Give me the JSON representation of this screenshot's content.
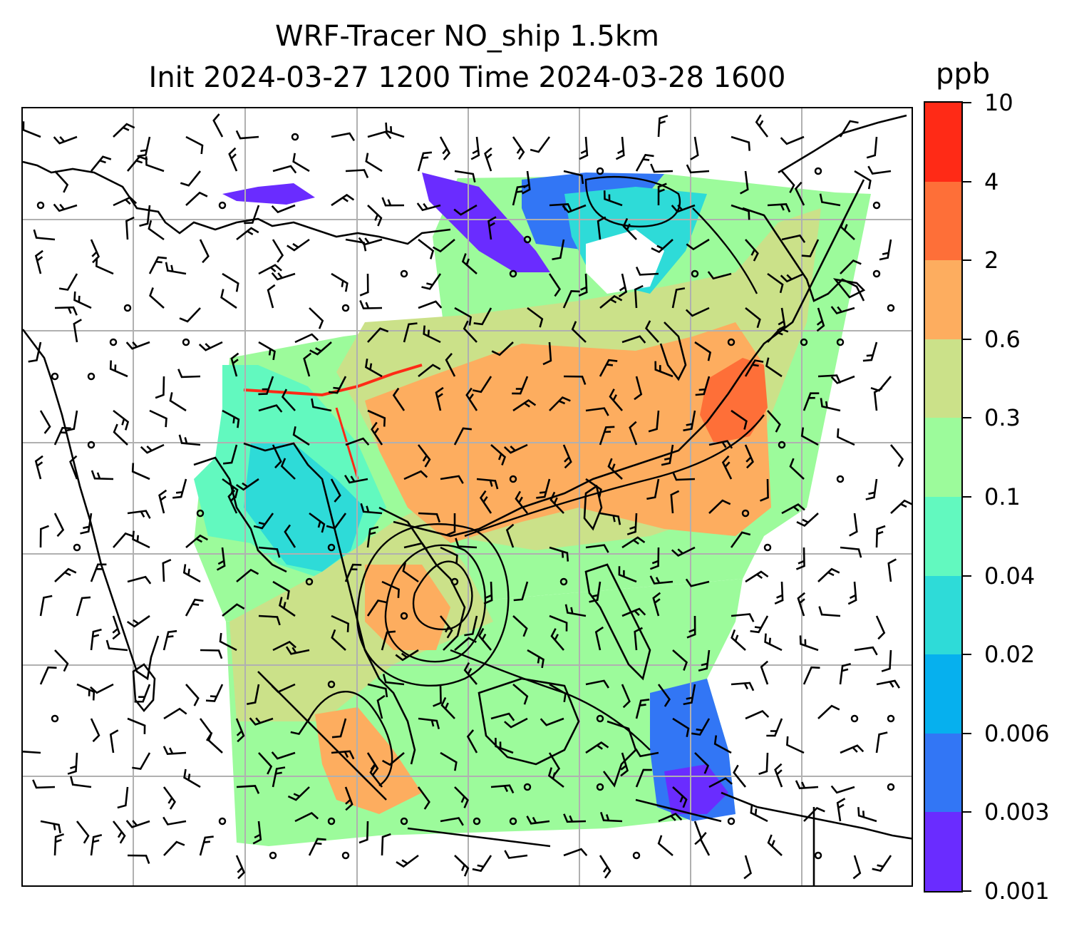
{
  "title": {
    "line1": "WRF-Tracer NO_ship 1.5km",
    "line2": "Init 2024-03-27 1200 Time 2024-03-28 1600"
  },
  "colorbar": {
    "unit": "ppb",
    "levels": [
      "0.001",
      "0.003",
      "0.006",
      "0.02",
      "0.04",
      "0.1",
      "0.3",
      "0.6",
      "2",
      "4",
      "10"
    ],
    "colors": [
      "#6a2cff",
      "#3276f5",
      "#06b0ee",
      "#2edbd8",
      "#62f9bf",
      "#9cfb9b",
      "#cbe189",
      "#fdad5f",
      "#fe6f38",
      "#ff2a16"
    ]
  },
  "map": {
    "background": "#ffffff",
    "gridlines": "on",
    "grid_color": "#b0b0b0",
    "coastline_color": "#000000",
    "overlays": [
      "wind-barbs",
      "contour-lines",
      "calm-wind-circles"
    ]
  }
}
